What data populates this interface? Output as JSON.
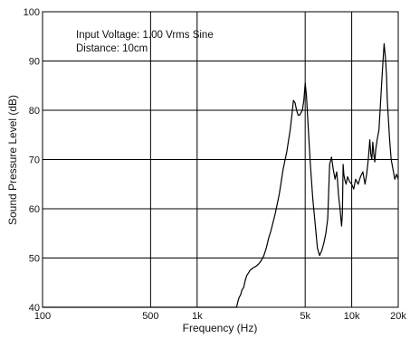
{
  "chart_data": {
    "type": "line",
    "title": "",
    "xlabel": "Frequency (Hz)",
    "ylabel": "Sound Pressure Level (dB)",
    "x_scale": "log",
    "xlim": [
      100,
      20000
    ],
    "ylim": [
      40,
      100
    ],
    "grid": true,
    "legend": "none",
    "annotations": [
      "Input Voltage: 1.00 Vrms Sine",
      "Distance: 10cm"
    ],
    "x_ticks": [
      {
        "value": 100,
        "label": "100"
      },
      {
        "value": 500,
        "label": "500"
      },
      {
        "value": 1000,
        "label": "1k"
      },
      {
        "value": 5000,
        "label": "5k"
      },
      {
        "value": 10000,
        "label": "10k"
      },
      {
        "value": 20000,
        "label": "20k"
      }
    ],
    "y_ticks": [
      {
        "value": 40,
        "label": "40"
      },
      {
        "value": 50,
        "label": "50"
      },
      {
        "value": 60,
        "label": "60"
      },
      {
        "value": 70,
        "label": "70"
      },
      {
        "value": 80,
        "label": "80"
      },
      {
        "value": 90,
        "label": "90"
      },
      {
        "value": 100,
        "label": "100"
      }
    ],
    "x_grid": [
      500,
      1000,
      5000,
      10000
    ],
    "y_grid": [
      50,
      60,
      70,
      80,
      90
    ],
    "line_color": "#000000",
    "series": [
      {
        "x": [
          100,
          1800,
          1830,
          1870,
          1910,
          1950,
          2000,
          2050,
          2100,
          2150,
          2200,
          2300,
          2400,
          2500,
          2600,
          2700,
          2800,
          2900,
          3000,
          3200,
          3400,
          3600,
          3800,
          4000,
          4100,
          4200,
          4300,
          4400,
          4500,
          4600,
          4700,
          4800,
          4900,
          5000,
          5100,
          5200,
          5400,
          5600,
          5800,
          6000,
          6200,
          6400,
          6600,
          6800,
          7000,
          7200,
          7400,
          7600,
          7800,
          8000,
          8100,
          8200,
          8400,
          8600,
          8700,
          8800,
          8900,
          9000,
          9200,
          9400,
          9700,
          10000,
          10300,
          10600,
          11000,
          11400,
          11800,
          12200,
          12500,
          12800,
          13100,
          13300,
          13500,
          13700,
          13900,
          14100,
          14300,
          14600,
          15000,
          15400,
          15800,
          16200,
          16500,
          16800,
          17000,
          17300,
          17600,
          18000,
          18500,
          19000,
          19500,
          20000
        ],
        "y": [
          40,
          40,
          41,
          42,
          42.5,
          43.5,
          44,
          45.5,
          46.5,
          47,
          47.5,
          48,
          48.3,
          48.8,
          49.5,
          50.5,
          52,
          54,
          55.5,
          59,
          63,
          68,
          71.5,
          76,
          79,
          82,
          81.5,
          80,
          79,
          79,
          79.5,
          80,
          82,
          85.5,
          83,
          78,
          69,
          62,
          57,
          52,
          50.5,
          51.5,
          53,
          55,
          58,
          69,
          70.5,
          68,
          66,
          67.5,
          65.5,
          63,
          60,
          56.5,
          59,
          69,
          67,
          66,
          65,
          66.5,
          65.5,
          65,
          64,
          66,
          65,
          66.5,
          67.5,
          65,
          67,
          70,
          74,
          71,
          70,
          73.5,
          71,
          69.5,
          72,
          74,
          76,
          82,
          88,
          93.5,
          91,
          87,
          82,
          78,
          74,
          70,
          68,
          66,
          67,
          66
        ]
      }
    ]
  }
}
